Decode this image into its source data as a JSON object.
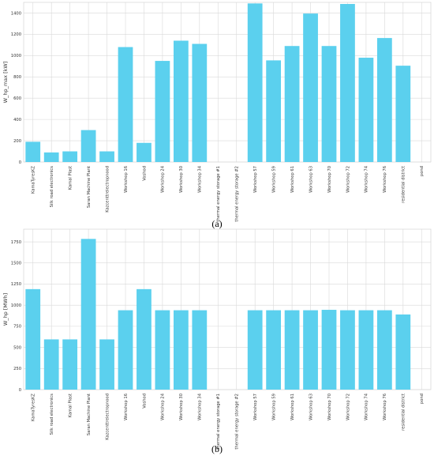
{
  "bar_color": "#5bd0ee",
  "grid_color": "#d9d9d9",
  "categories": [
    "KamaTyresKZ",
    "Silk road electronics",
    "Kamal Plast",
    "Saran Machine Plant",
    "Kazcenttreiectropnood",
    "Workshop 16",
    "Voshod",
    "Workshop 24",
    "Workshop 30",
    "Workshop 34",
    "thermal energy storage #1",
    "thermal energy storage #2",
    "Workshop 57",
    "Workshop 59",
    "Workshop 61",
    "Workshop 63",
    "Workshop 70",
    "Workshop 72",
    "Workshop 74",
    "Workshop 76",
    "residential district",
    "pond"
  ],
  "chart_data": [
    {
      "type": "bar",
      "panel_label": "(a)",
      "ylabel": "W_hp_max [kW]",
      "ylim": [
        0,
        1500
      ],
      "yticks": [
        0,
        200,
        400,
        600,
        800,
        1000,
        1200,
        1400
      ],
      "grid": true,
      "values": [
        190,
        90,
        100,
        300,
        100,
        1080,
        180,
        950,
        1140,
        1110,
        0,
        0,
        1490,
        955,
        1090,
        1395,
        1090,
        1485,
        980,
        1165,
        905,
        0
      ]
    },
    {
      "type": "bar",
      "panel_label": "(b)",
      "ylabel": "W_hp [MWh]",
      "ylim": [
        0,
        1900
      ],
      "yticks": [
        0,
        250,
        500,
        750,
        1000,
        1250,
        1500,
        1750
      ],
      "grid": true,
      "values": [
        1190,
        595,
        595,
        1785,
        595,
        940,
        1190,
        940,
        940,
        940,
        0,
        0,
        940,
        940,
        940,
        940,
        945,
        940,
        940,
        940,
        890,
        0
      ]
    }
  ]
}
